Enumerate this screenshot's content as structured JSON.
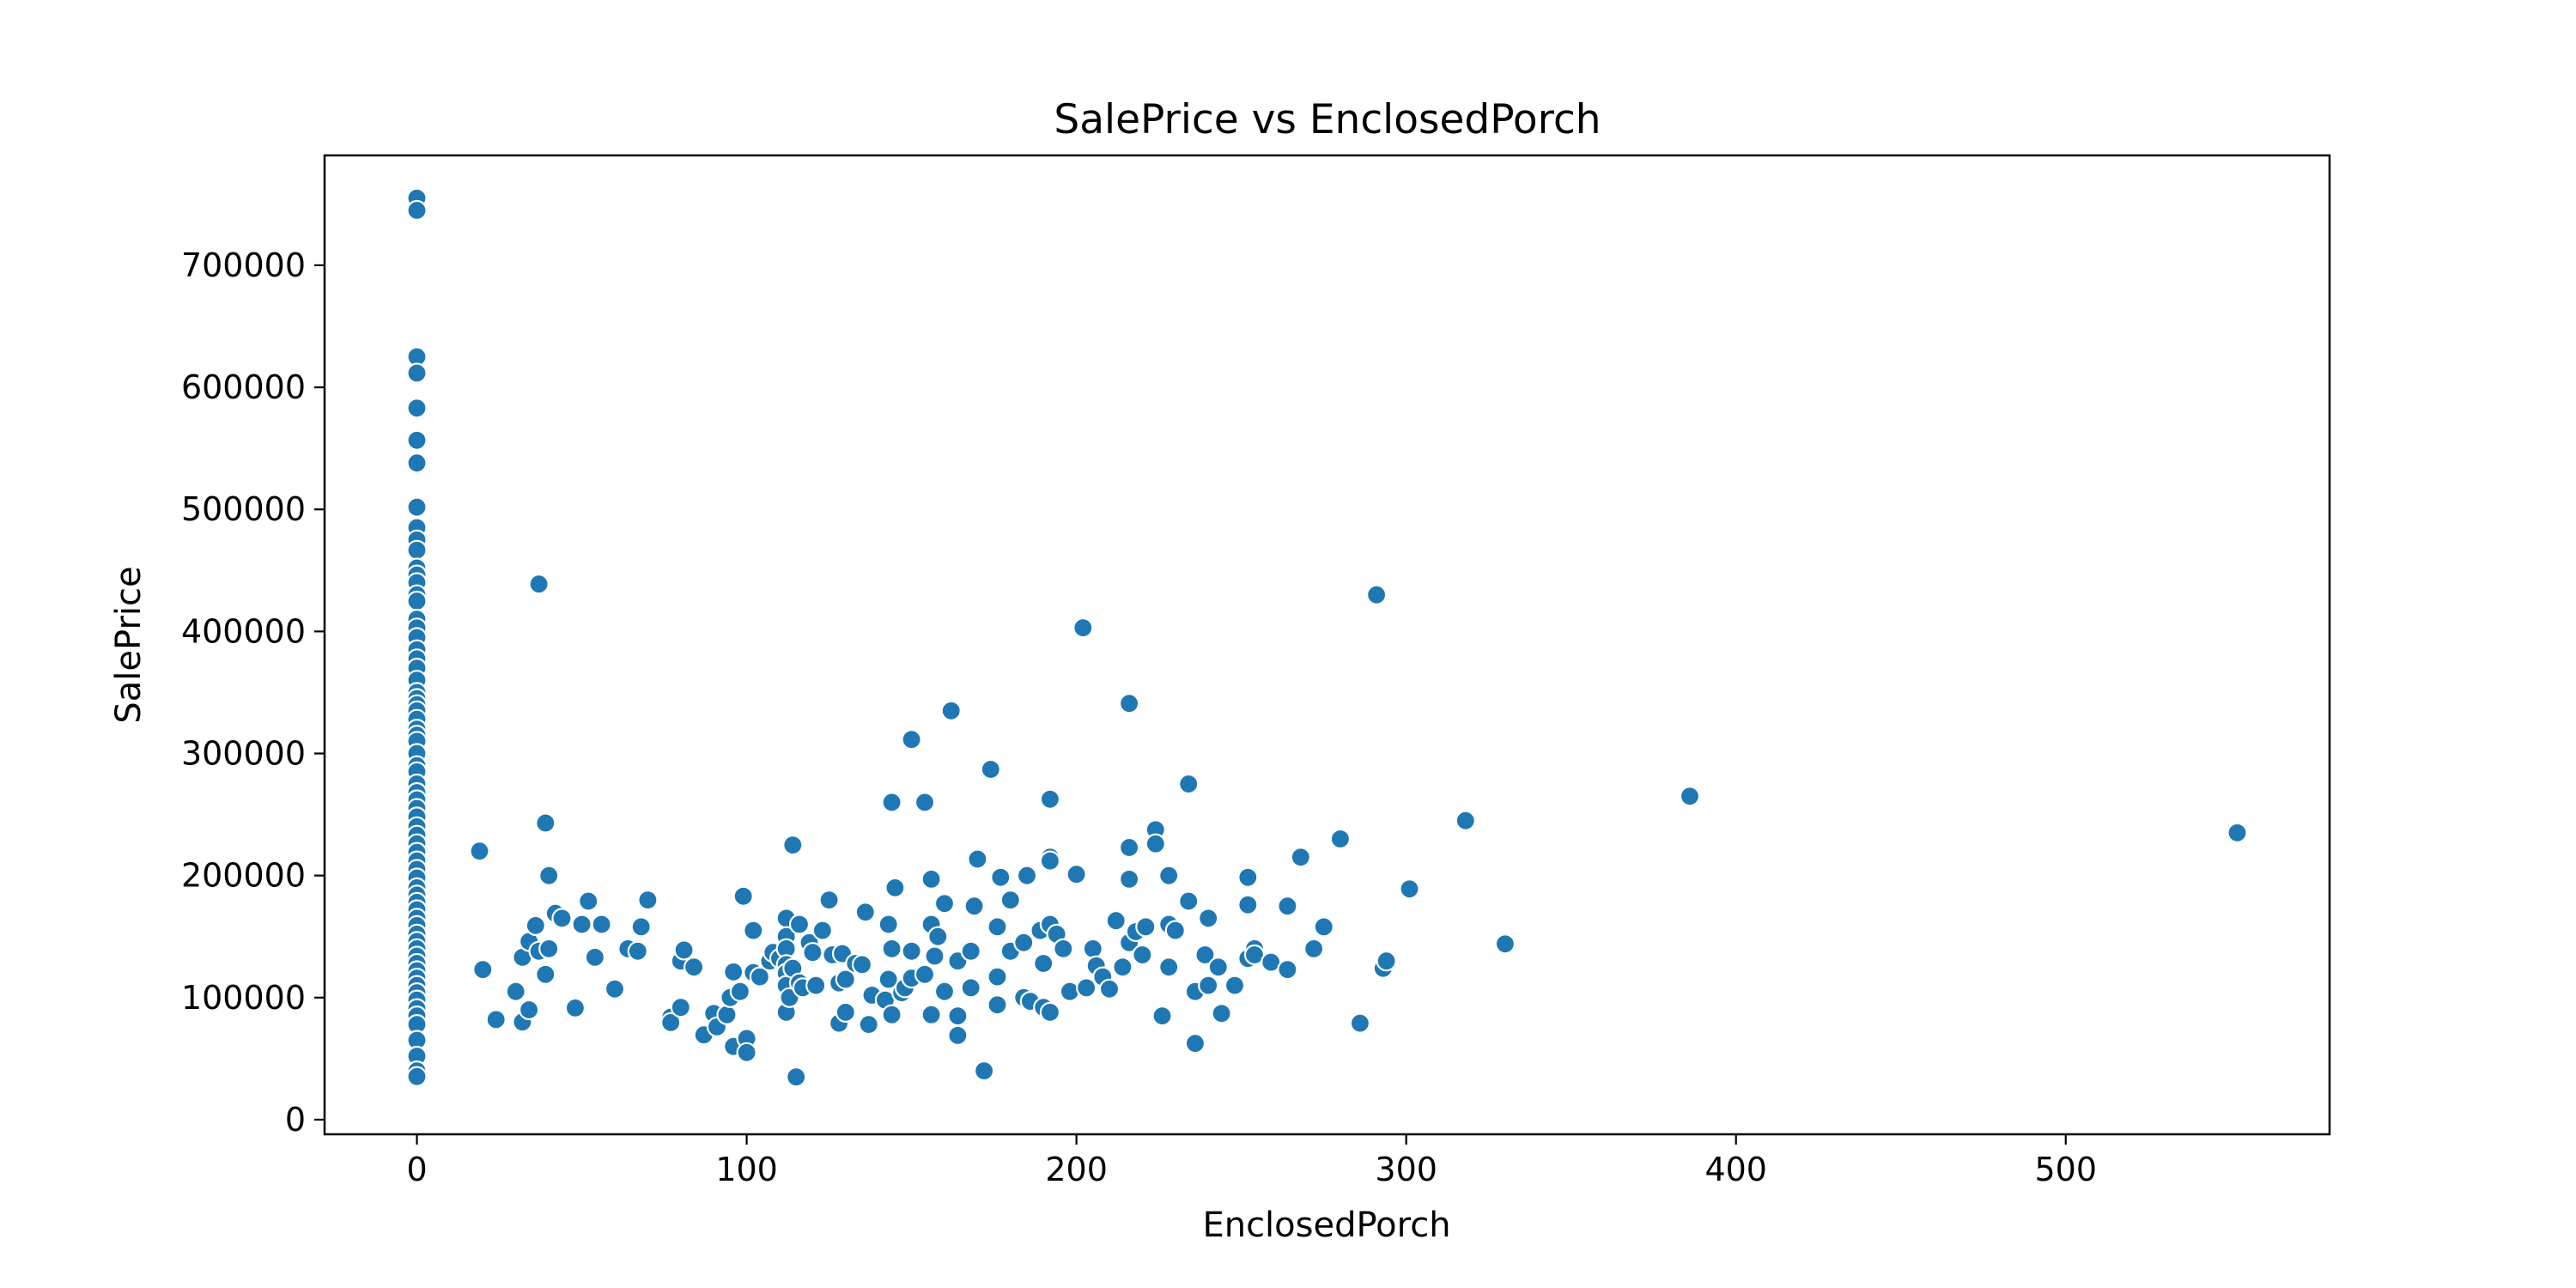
{
  "chart_data": {
    "type": "scatter",
    "title": "SalePrice vs EnclosedPorch",
    "xlabel": "EnclosedPorch",
    "ylabel": "SalePrice",
    "xlim": [
      -28,
      580
    ],
    "ylim": [
      -12000,
      790000
    ],
    "xticks": [
      0,
      100,
      200,
      300,
      400,
      500
    ],
    "yticks": [
      0,
      100000,
      200000,
      300000,
      400000,
      500000,
      600000,
      700000
    ],
    "xtick_labels": [
      "0",
      "100",
      "200",
      "300",
      "400",
      "500"
    ],
    "ytick_labels": [
      "0",
      "100000",
      "200000",
      "300000",
      "400000",
      "500000",
      "600000",
      "700000"
    ],
    "grid": false,
    "legend": "none",
    "point_color": "#1f77b4",
    "points": [
      [
        0,
        755000
      ],
      [
        0,
        745000
      ],
      [
        0,
        625000
      ],
      [
        0,
        611657
      ],
      [
        0,
        582933
      ],
      [
        0,
        556581
      ],
      [
        0,
        538000
      ],
      [
        0,
        501837
      ],
      [
        0,
        485000
      ],
      [
        0,
        475000
      ],
      [
        0,
        466500
      ],
      [
        0,
        451950
      ],
      [
        0,
        446261
      ],
      [
        0,
        440000
      ],
      [
        0,
        430000
      ],
      [
        0,
        424870
      ],
      [
        0,
        410000
      ],
      [
        0,
        402861
      ],
      [
        0,
        395000
      ],
      [
        0,
        385000
      ],
      [
        0,
        377500
      ],
      [
        0,
        369900
      ],
      [
        0,
        360000
      ],
      [
        0,
        350000
      ],
      [
        0,
        345000
      ],
      [
        0,
        340000
      ],
      [
        0,
        335000
      ],
      [
        0,
        328000
      ],
      [
        0,
        320000
      ],
      [
        0,
        315000
      ],
      [
        0,
        310000
      ],
      [
        0,
        300000
      ],
      [
        0,
        290000
      ],
      [
        0,
        285000
      ],
      [
        0,
        275000
      ],
      [
        0,
        268000
      ],
      [
        0,
        262000
      ],
      [
        0,
        255000
      ],
      [
        0,
        248000
      ],
      [
        0,
        240000
      ],
      [
        0,
        233000
      ],
      [
        0,
        226000
      ],
      [
        0,
        219000
      ],
      [
        0,
        212000
      ],
      [
        0,
        205000
      ],
      [
        0,
        198000
      ],
      [
        0,
        190000
      ],
      [
        0,
        184000
      ],
      [
        0,
        178000
      ],
      [
        0,
        172000
      ],
      [
        0,
        165000
      ],
      [
        0,
        159000
      ],
      [
        0,
        152000
      ],
      [
        0,
        146000
      ],
      [
        0,
        140000
      ],
      [
        0,
        134000
      ],
      [
        0,
        128000
      ],
      [
        0,
        122000
      ],
      [
        0,
        116000
      ],
      [
        0,
        110000
      ],
      [
        0,
        104000
      ],
      [
        0,
        98000
      ],
      [
        0,
        91000
      ],
      [
        0,
        85000
      ],
      [
        0,
        78000
      ],
      [
        0,
        65000
      ],
      [
        0,
        52000
      ],
      [
        0,
        40000
      ],
      [
        0,
        35311
      ],
      [
        19,
        220000
      ],
      [
        20,
        123000
      ],
      [
        24,
        82000
      ],
      [
        30,
        105000
      ],
      [
        32,
        80000
      ],
      [
        32,
        133000
      ],
      [
        34,
        90000
      ],
      [
        34,
        146000
      ],
      [
        36,
        159000
      ],
      [
        37,
        438780
      ],
      [
        37,
        138000
      ],
      [
        39,
        243000
      ],
      [
        39,
        119000
      ],
      [
        40,
        140000
      ],
      [
        40,
        200000
      ],
      [
        42,
        169000
      ],
      [
        44,
        165000
      ],
      [
        48,
        91500
      ],
      [
        50,
        160000
      ],
      [
        52,
        179000
      ],
      [
        54,
        133000
      ],
      [
        56,
        160000
      ],
      [
        60,
        107000
      ],
      [
        64,
        140000
      ],
      [
        67,
        138000
      ],
      [
        68,
        158000
      ],
      [
        70,
        180000
      ],
      [
        77,
        84000
      ],
      [
        77,
        79500
      ],
      [
        80,
        92000
      ],
      [
        80,
        130000
      ],
      [
        81,
        139000
      ],
      [
        84,
        125000
      ],
      [
        87,
        69500
      ],
      [
        90,
        87000
      ],
      [
        91,
        76000
      ],
      [
        94,
        86000
      ],
      [
        95,
        100000
      ],
      [
        96,
        121000
      ],
      [
        96,
        60000
      ],
      [
        98,
        105000
      ],
      [
        99,
        183000
      ],
      [
        100,
        66500
      ],
      [
        100,
        55000
      ],
      [
        102,
        120500
      ],
      [
        102,
        155000
      ],
      [
        104,
        117000
      ],
      [
        107,
        130000
      ],
      [
        108,
        137000
      ],
      [
        110,
        132000
      ],
      [
        112,
        165000
      ],
      [
        112,
        150000
      ],
      [
        112,
        140000
      ],
      [
        112,
        127000
      ],
      [
        112,
        120000
      ],
      [
        112,
        110000
      ],
      [
        112,
        88000
      ],
      [
        113,
        100000
      ],
      [
        114,
        225000
      ],
      [
        114,
        124000
      ],
      [
        115,
        35000
      ],
      [
        116,
        160000
      ],
      [
        116,
        112000
      ],
      [
        117,
        108000
      ],
      [
        119,
        145000
      ],
      [
        120,
        137000
      ],
      [
        121,
        110000
      ],
      [
        123,
        155000
      ],
      [
        125,
        180000
      ],
      [
        126,
        135000
      ],
      [
        128,
        112000
      ],
      [
        128,
        79000
      ],
      [
        129,
        136000
      ],
      [
        130,
        88000
      ],
      [
        130,
        115000
      ],
      [
        133,
        128000
      ],
      [
        135,
        127000
      ],
      [
        136,
        170000
      ],
      [
        137,
        78000
      ],
      [
        138,
        102000
      ],
      [
        142,
        98000
      ],
      [
        143,
        160000
      ],
      [
        143,
        115000
      ],
      [
        144,
        260000
      ],
      [
        144,
        86000
      ],
      [
        144,
        140000
      ],
      [
        145,
        190000
      ],
      [
        147,
        104000
      ],
      [
        148,
        108000
      ],
      [
        150,
        311500
      ],
      [
        150,
        138000
      ],
      [
        150,
        116000
      ],
      [
        154,
        260000
      ],
      [
        154,
        119000
      ],
      [
        156,
        197000
      ],
      [
        156,
        160000
      ],
      [
        156,
        86000
      ],
      [
        157,
        134000
      ],
      [
        158,
        150000
      ],
      [
        160,
        177000
      ],
      [
        160,
        105000
      ],
      [
        162,
        335000
      ],
      [
        164,
        130000
      ],
      [
        164,
        85000
      ],
      [
        164,
        69000
      ],
      [
        168,
        138000
      ],
      [
        168,
        108000
      ],
      [
        169,
        175000
      ],
      [
        170,
        213500
      ],
      [
        172,
        40000
      ],
      [
        174,
        287000
      ],
      [
        176,
        158000
      ],
      [
        176,
        117000
      ],
      [
        176,
        94000
      ],
      [
        177,
        198500
      ],
      [
        180,
        138000
      ],
      [
        180,
        180000
      ],
      [
        184,
        145000
      ],
      [
        184,
        100000
      ],
      [
        185,
        200000
      ],
      [
        186,
        97000
      ],
      [
        189,
        155000
      ],
      [
        190,
        92000
      ],
      [
        190,
        128000
      ],
      [
        192,
        262500
      ],
      [
        192,
        215000
      ],
      [
        192,
        212000
      ],
      [
        192,
        160000
      ],
      [
        192,
        88000
      ],
      [
        194,
        152000
      ],
      [
        196,
        140000
      ],
      [
        198,
        105000
      ],
      [
        200,
        201000
      ],
      [
        202,
        403000
      ],
      [
        203,
        108000
      ],
      [
        205,
        140000
      ],
      [
        206,
        126000
      ],
      [
        208,
        117000
      ],
      [
        210,
        107000
      ],
      [
        212,
        163000
      ],
      [
        214,
        125000
      ],
      [
        216,
        341000
      ],
      [
        216,
        223000
      ],
      [
        216,
        197000
      ],
      [
        216,
        145000
      ],
      [
        218,
        154000
      ],
      [
        220,
        135000
      ],
      [
        221,
        158000
      ],
      [
        224,
        237500
      ],
      [
        224,
        226000
      ],
      [
        226,
        85000
      ],
      [
        228,
        200000
      ],
      [
        228,
        160000
      ],
      [
        228,
        125000
      ],
      [
        230,
        155000
      ],
      [
        234,
        275000
      ],
      [
        234,
        179000
      ],
      [
        236,
        105000
      ],
      [
        236,
        62500
      ],
      [
        239,
        135000
      ],
      [
        240,
        165000
      ],
      [
        240,
        110000
      ],
      [
        243,
        125000
      ],
      [
        244,
        87000
      ],
      [
        248,
        110000
      ],
      [
        252,
        198500
      ],
      [
        252,
        176000
      ],
      [
        252,
        132000
      ],
      [
        254,
        140000
      ],
      [
        254,
        135000
      ],
      [
        259,
        129000
      ],
      [
        264,
        175000
      ],
      [
        264,
        123000
      ],
      [
        268,
        215000
      ],
      [
        272,
        140000
      ],
      [
        275,
        158000
      ],
      [
        280,
        230000
      ],
      [
        286,
        79000
      ],
      [
        291,
        430000
      ],
      [
        293,
        124000
      ],
      [
        294,
        130000
      ],
      [
        301,
        189000
      ],
      [
        318,
        245000
      ],
      [
        330,
        144000
      ],
      [
        386,
        265000
      ],
      [
        552,
        235000
      ]
    ]
  }
}
